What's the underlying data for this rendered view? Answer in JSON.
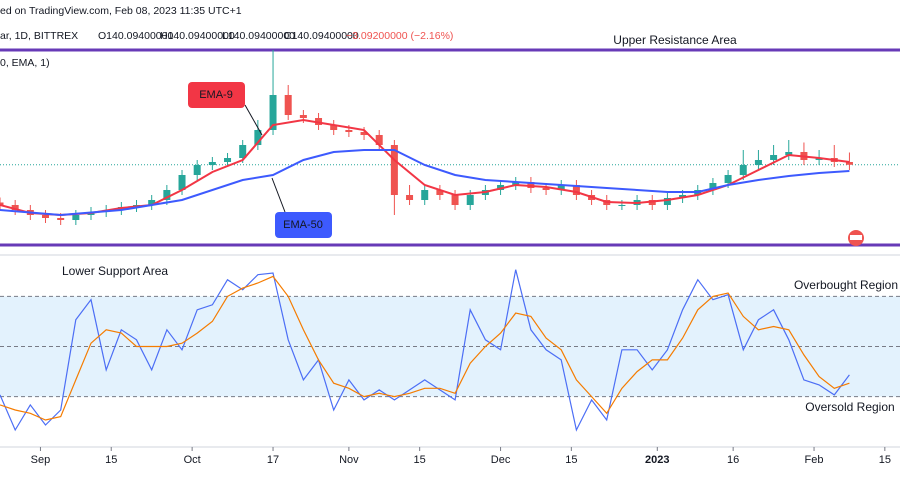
{
  "header": {
    "published": "ed on TradingView.com, Feb 08, 2023 11:35 UTC+1",
    "symbol": "ar, 1D, BITTREX",
    "ohlc": [
      "O140.09400000",
      "H140.09400000",
      "L140.09400000",
      "C140.09400000"
    ],
    "change": "−3.09200000 (−2.16%)",
    "indicator": "0, EMA, 1)"
  },
  "chart_data": [
    {
      "type": "candlestick",
      "annotations": [
        "Upper Resistance Area",
        "EMA-9",
        "EMA-50"
      ],
      "ylim": [
        106,
        206
      ],
      "xlim": [
        0,
        178
      ],
      "hlines": [
        186,
        108
      ],
      "hline_color": "#673ab7",
      "last_price": 140.09,
      "last_price_color": "#26a69a",
      "up_color": "#26a69a",
      "down_color": "#ef5350",
      "x": [
        0,
        3,
        6,
        9,
        12,
        15,
        18,
        21,
        24,
        27,
        30,
        33,
        36,
        39,
        42,
        45,
        48,
        51,
        54,
        57,
        60,
        63,
        66,
        69,
        72,
        75,
        78,
        81,
        84,
        87,
        90,
        93,
        96,
        99,
        102,
        105,
        108,
        111,
        114,
        117,
        120,
        123,
        126,
        129,
        132,
        135,
        138,
        141,
        144,
        147,
        150,
        153,
        156,
        159,
        162,
        165,
        168
      ],
      "open": [
        125,
        124,
        122,
        120,
        118.8,
        118,
        120,
        121.2,
        122,
        123.2,
        124,
        126,
        130,
        136,
        140,
        141.2,
        142.8,
        148,
        154,
        168,
        160,
        158.8,
        156,
        154,
        153.2,
        152,
        148,
        128,
        126,
        130,
        128,
        124,
        128,
        130,
        132,
        133.2,
        130.8,
        130,
        132,
        128,
        126,
        124,
        124,
        126,
        124,
        126.8,
        128,
        130,
        132.8,
        136,
        140,
        142,
        144,
        145.2,
        142,
        142.8,
        141.2
      ],
      "high": [
        127,
        126,
        124,
        122,
        120.8,
        122,
        123.2,
        124,
        125.2,
        126,
        128,
        132,
        138,
        142,
        143.2,
        144.8,
        150,
        158,
        186,
        172,
        162,
        160.8,
        158,
        156,
        155.2,
        154,
        150,
        132,
        132,
        132,
        130,
        130,
        132,
        134,
        135.2,
        135.2,
        132.8,
        134,
        134,
        130,
        128,
        126,
        128,
        128,
        128.8,
        130,
        132,
        134.8,
        138,
        146,
        146,
        148,
        150,
        149,
        146,
        148,
        145
      ],
      "low": [
        122,
        120,
        118,
        116.8,
        116,
        116,
        118,
        119.2,
        120,
        121.2,
        122,
        124,
        128,
        134,
        138,
        139.2,
        140.8,
        146,
        152,
        158,
        156.8,
        154,
        152,
        151.2,
        150,
        146,
        120,
        124,
        124,
        126,
        122,
        122,
        126,
        128,
        130,
        128.8,
        128,
        128,
        126,
        124,
        122,
        122,
        122,
        122,
        122,
        124.8,
        126,
        128,
        130.8,
        134,
        138,
        140,
        142,
        140,
        140,
        139.2,
        138
      ],
      "close": [
        124,
        122,
        120,
        118.8,
        118,
        120,
        121.2,
        122,
        123.2,
        124,
        126,
        130,
        136,
        140,
        141.2,
        142.8,
        148,
        154,
        168,
        160,
        158.8,
        156,
        154,
        153.2,
        152,
        148,
        128,
        126,
        130,
        128,
        124,
        128,
        130,
        132,
        133.2,
        130.8,
        130,
        132,
        128,
        126,
        124,
        124,
        126,
        124,
        126.8,
        128,
        130,
        132.8,
        136,
        140,
        142,
        144,
        145.2,
        142,
        142.8,
        141.2,
        140.09
      ],
      "lines": [
        {
          "color": "#f23645",
          "x": [
            0,
            6,
            12,
            18,
            24,
            30,
            36,
            42,
            48,
            54,
            60,
            66,
            72,
            78,
            84,
            90,
            96,
            102,
            108,
            114,
            120,
            126,
            132,
            138,
            144,
            150,
            156,
            162,
            168
          ],
          "values": [
            124,
            120.8,
            120,
            120.8,
            122.8,
            124,
            130,
            137.2,
            142,
            156,
            158,
            156,
            154,
            142,
            132,
            128,
            129.2,
            132,
            131.2,
            129.2,
            125.2,
            124.8,
            126,
            128,
            132,
            138,
            144,
            142.8,
            141.2
          ]
        },
        {
          "color": "#3d5afe",
          "x": [
            0,
            12,
            24,
            36,
            48,
            54,
            60,
            66,
            72,
            78,
            84,
            90,
            96,
            102,
            108,
            114,
            120,
            126,
            132,
            138,
            144,
            150,
            156,
            162,
            168
          ],
          "values": [
            122,
            120,
            122,
            126,
            134,
            136,
            142,
            145.2,
            146,
            146,
            140,
            136,
            134,
            133.2,
            132.4,
            131.6,
            130.8,
            130,
            129.2,
            129.2,
            132,
            134,
            135.6,
            136.8,
            137.6
          ]
        }
      ]
    },
    {
      "type": "line",
      "annotations": [
        "Lower Support Area",
        "Overbought Region",
        "Oversold Region"
      ],
      "ylim": [
        0,
        100
      ],
      "xlim": [
        0,
        178
      ],
      "levels": [
        80,
        50,
        20
      ],
      "band_color": "#e3f2fd",
      "xticks": [
        {
          "value": 8,
          "label": "Sep"
        },
        {
          "value": 22,
          "label": "15"
        },
        {
          "value": 38,
          "label": "Oct"
        },
        {
          "value": 54,
          "label": "17"
        },
        {
          "value": 69,
          "label": "Nov"
        },
        {
          "value": 83,
          "label": "15"
        },
        {
          "value": 99,
          "label": "Dec"
        },
        {
          "value": 113,
          "label": "15"
        },
        {
          "value": 130,
          "label": "2023"
        },
        {
          "value": 145,
          "label": "16"
        },
        {
          "value": 161,
          "label": "Feb"
        },
        {
          "value": 175,
          "label": "15"
        }
      ],
      "x": [
        0,
        3,
        6,
        9,
        12,
        15,
        18,
        21,
        24,
        27,
        30,
        33,
        36,
        39,
        42,
        45,
        48,
        51,
        54,
        57,
        60,
        63,
        66,
        69,
        72,
        75,
        78,
        81,
        84,
        87,
        90,
        93,
        96,
        99,
        102,
        105,
        108,
        111,
        114,
        117,
        120,
        123,
        126,
        129,
        132,
        135,
        138,
        141,
        144,
        147,
        150,
        153,
        156,
        159,
        162,
        165,
        168
      ],
      "series": [
        {
          "color": "#4c6ef5",
          "values": [
            21,
            0,
            15,
            3,
            12,
            66,
            78,
            36,
            60,
            54,
            36,
            60,
            48,
            72,
            75,
            90,
            84,
            93,
            94,
            54,
            30,
            42,
            12,
            30,
            18,
            24,
            18,
            24,
            30,
            24,
            18,
            72,
            54,
            48,
            96,
            60,
            48,
            42,
            0,
            18,
            6,
            48,
            48,
            36,
            48,
            72,
            90,
            78,
            81,
            48,
            66,
            72,
            54,
            30,
            27,
            21,
            33
          ]
        },
        {
          "color": "#f57c00",
          "values": [
            15,
            12,
            10,
            6,
            8,
            30,
            52,
            60,
            58,
            50,
            50,
            50,
            52,
            58,
            65,
            80,
            85,
            88,
            92,
            80,
            60,
            42,
            28,
            25,
            20,
            22,
            20,
            22,
            25,
            25,
            22,
            40,
            50,
            58,
            70,
            68,
            55,
            48,
            30,
            20,
            10,
            25,
            35,
            42,
            42,
            55,
            72,
            80,
            82,
            68,
            60,
            62,
            60,
            45,
            32,
            25,
            28
          ]
        }
      ]
    }
  ]
}
